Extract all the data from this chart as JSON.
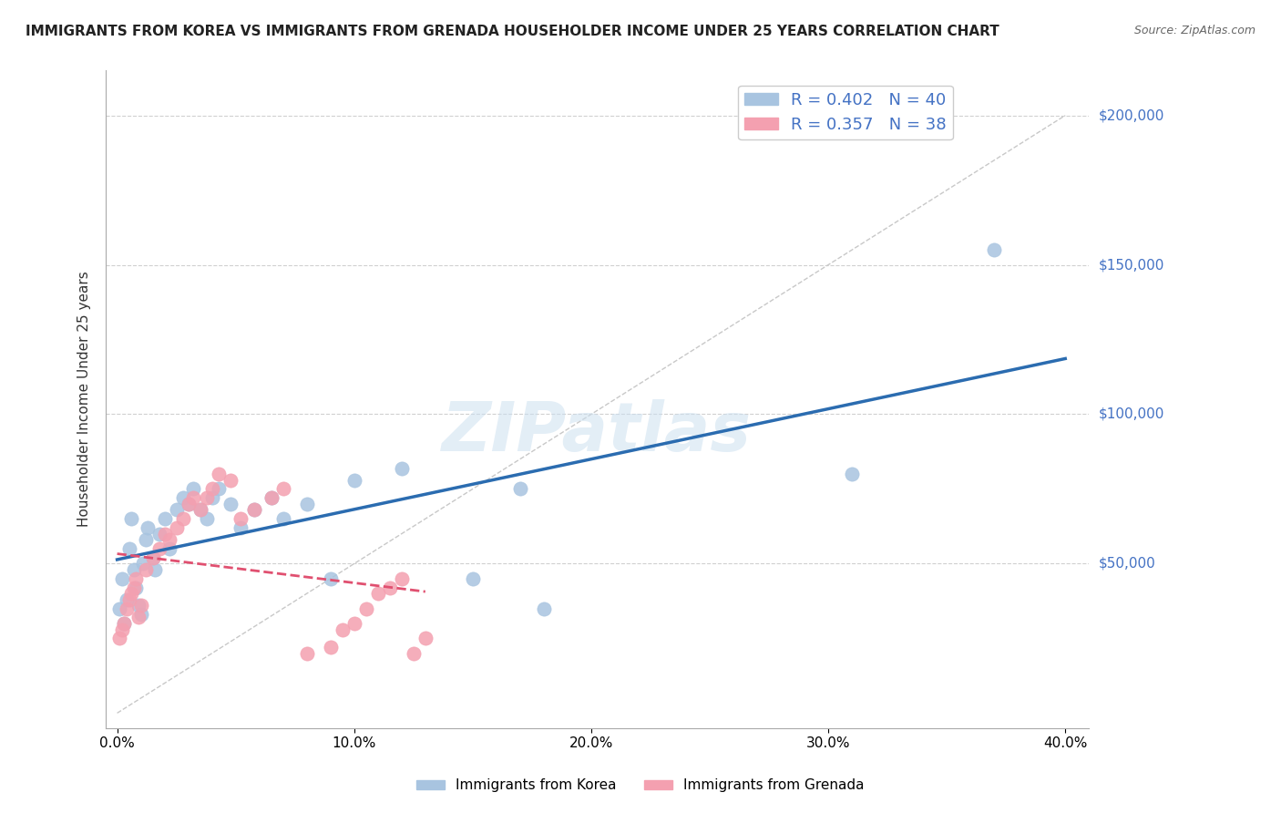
{
  "title": "IMMIGRANTS FROM KOREA VS IMMIGRANTS FROM GRENADA HOUSEHOLDER INCOME UNDER 25 YEARS CORRELATION CHART",
  "source": "Source: ZipAtlas.com",
  "ylabel": "Householder Income Under 25 years",
  "xlim": [
    -0.005,
    0.41
  ],
  "ylim": [
    -5000,
    215000
  ],
  "xticks": [
    0.0,
    0.1,
    0.2,
    0.3,
    0.4
  ],
  "xticklabels": [
    "0.0%",
    "10.0%",
    "20.0%",
    "30.0%",
    "40.0%"
  ],
  "ytick_vals": [
    50000,
    100000,
    150000,
    200000
  ],
  "ytick_labels": [
    "$50,000",
    "$100,000",
    "$150,000",
    "$200,000"
  ],
  "korea_R": 0.402,
  "korea_N": 40,
  "grenada_R": 0.357,
  "grenada_N": 38,
  "korea_color": "#a8c4e0",
  "grenada_color": "#f4a0b0",
  "korea_line_color": "#2b6cb0",
  "grenada_line_color": "#e05070",
  "right_label_color": "#4472c4",
  "watermark": "ZIPatlas",
  "korea_scatter_x": [
    0.001,
    0.002,
    0.003,
    0.004,
    0.005,
    0.006,
    0.007,
    0.008,
    0.009,
    0.01,
    0.011,
    0.012,
    0.013,
    0.015,
    0.016,
    0.018,
    0.02,
    0.022,
    0.025,
    0.028,
    0.03,
    0.032,
    0.035,
    0.038,
    0.04,
    0.043,
    0.048,
    0.052,
    0.058,
    0.065,
    0.07,
    0.08,
    0.09,
    0.1,
    0.12,
    0.15,
    0.17,
    0.18,
    0.31,
    0.37
  ],
  "korea_scatter_y": [
    35000,
    45000,
    30000,
    38000,
    55000,
    65000,
    48000,
    42000,
    36000,
    33000,
    50000,
    58000,
    62000,
    52000,
    48000,
    60000,
    65000,
    55000,
    68000,
    72000,
    70000,
    75000,
    68000,
    65000,
    72000,
    75000,
    70000,
    62000,
    68000,
    72000,
    65000,
    70000,
    45000,
    78000,
    82000,
    45000,
    75000,
    35000,
    80000,
    155000
  ],
  "grenada_scatter_x": [
    0.001,
    0.002,
    0.003,
    0.004,
    0.005,
    0.006,
    0.007,
    0.008,
    0.009,
    0.01,
    0.012,
    0.015,
    0.018,
    0.02,
    0.022,
    0.025,
    0.028,
    0.03,
    0.032,
    0.035,
    0.038,
    0.04,
    0.043,
    0.048,
    0.052,
    0.058,
    0.065,
    0.07,
    0.08,
    0.09,
    0.095,
    0.1,
    0.105,
    0.11,
    0.115,
    0.12,
    0.125,
    0.13
  ],
  "grenada_scatter_y": [
    25000,
    28000,
    30000,
    35000,
    38000,
    40000,
    42000,
    45000,
    32000,
    36000,
    48000,
    52000,
    55000,
    60000,
    58000,
    62000,
    65000,
    70000,
    72000,
    68000,
    72000,
    75000,
    80000,
    78000,
    65000,
    68000,
    72000,
    75000,
    20000,
    22000,
    28000,
    30000,
    35000,
    40000,
    42000,
    45000,
    20000,
    25000
  ],
  "korea_legend_label": "Immigrants from Korea",
  "grenada_legend_label": "Immigrants from Grenada"
}
